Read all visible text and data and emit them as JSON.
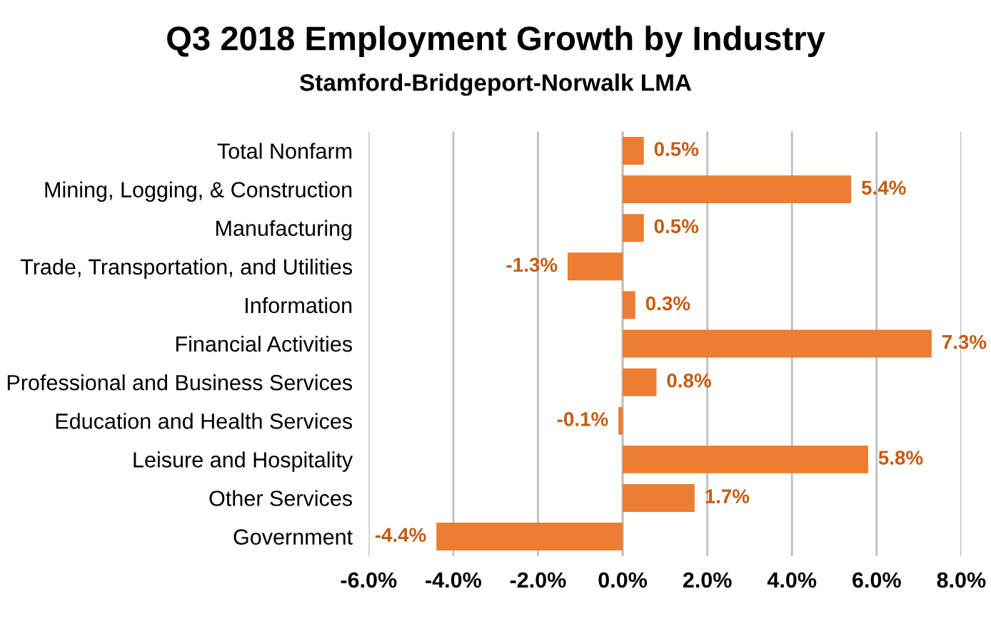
{
  "chart_data": {
    "type": "bar",
    "orientation": "horizontal",
    "title": "Q3 2018 Employment Growth by Industry",
    "subtitle": "Stamford-Bridgeport-Norwalk LMA",
    "categories": [
      "Total Nonfarm",
      "Mining, Logging, & Construction",
      "Manufacturing",
      "Trade, Transportation, and Utilities",
      "Information",
      "Financial Activities",
      "Professional and Business Services",
      "Education and Health Services",
      "Leisure and Hospitality",
      "Other Services",
      "Government"
    ],
    "values": [
      0.5,
      5.4,
      0.5,
      -1.3,
      0.3,
      7.3,
      0.8,
      -0.1,
      5.8,
      1.7,
      -4.4
    ],
    "value_labels": [
      "0.5%",
      "5.4%",
      "0.5%",
      "-1.3%",
      "0.3%",
      "7.3%",
      "0.8%",
      "-0.1%",
      "5.8%",
      "1.7%",
      "-4.4%"
    ],
    "color": "#ed7d31",
    "xlim": [
      -6,
      8
    ],
    "xticks": [
      {
        "value": -6,
        "label": "-6.0%"
      },
      {
        "value": -4,
        "label": "-4.0%"
      },
      {
        "value": -2,
        "label": "-2.0%"
      },
      {
        "value": 0,
        "label": "0.0%"
      },
      {
        "value": 2,
        "label": "2.0%"
      },
      {
        "value": 4,
        "label": "4.0%"
      },
      {
        "value": 6,
        "label": "6.0%"
      },
      {
        "value": 8,
        "label": "8.0%"
      }
    ],
    "grid": "x"
  }
}
